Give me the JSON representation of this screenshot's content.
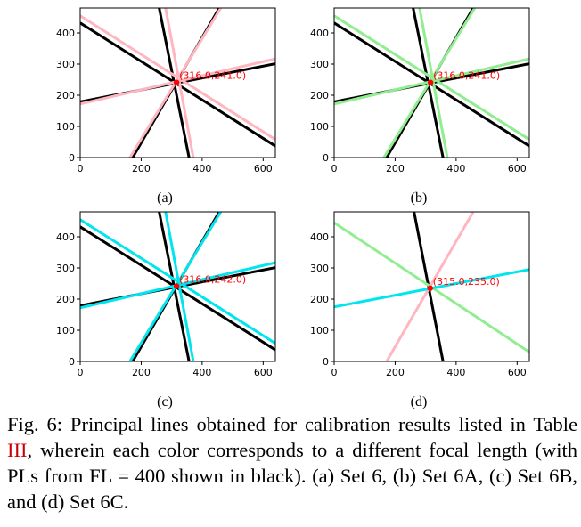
{
  "chart_data": [
    {
      "type": "line",
      "xlim": [
        0,
        640
      ],
      "ylim": [
        0,
        480
      ],
      "xticks": [
        "0",
        "200",
        "400",
        "600"
      ],
      "yticks": [
        "0",
        "100",
        "200",
        "300",
        "400"
      ],
      "point": {
        "x": 316.0,
        "y": 241.0,
        "label": "(316.0,241.0)"
      },
      "subcaption": "(a)",
      "colors": {
        "fl400": "#000000",
        "other": "#ffb6c1",
        "point": "#ff0000"
      },
      "series": [
        {
          "color": "#000000",
          "lines": [
            {
              "x": [
                0,
                640
              ],
              "y": [
                432,
                37
              ]
            },
            {
              "x": [
                0,
                640
              ],
              "y": [
                179,
                301
              ]
            },
            {
              "x": [
                172,
                456
              ],
              "y": [
                0,
                480
              ]
            },
            {
              "x": [
                259,
                357
              ],
              "y": [
                480,
                0
              ]
            }
          ]
        },
        {
          "color": "#ffb6c1",
          "lines": [
            {
              "x": [
                0,
                640
              ],
              "y": [
                455,
                58
              ]
            },
            {
              "x": [
                0,
                640
              ],
              "y": [
                172,
                317
              ]
            },
            {
              "x": [
                163,
                461
              ],
              "y": [
                0,
                480
              ]
            },
            {
              "x": [
                280,
                371
              ],
              "y": [
                480,
                0
              ]
            }
          ]
        }
      ]
    },
    {
      "type": "line",
      "xlim": [
        0,
        640
      ],
      "ylim": [
        0,
        480
      ],
      "xticks": [
        "0",
        "200",
        "400",
        "600"
      ],
      "yticks": [
        "0",
        "100",
        "200",
        "300",
        "400"
      ],
      "point": {
        "x": 316.0,
        "y": 241.0,
        "label": "(316.0,241.0)"
      },
      "subcaption": "(b)",
      "colors": {
        "fl400": "#000000",
        "other": "#90ee90",
        "point": "#ff0000"
      },
      "series": [
        {
          "color": "#000000",
          "lines": [
            {
              "x": [
                0,
                640
              ],
              "y": [
                432,
                37
              ]
            },
            {
              "x": [
                0,
                640
              ],
              "y": [
                179,
                301
              ]
            },
            {
              "x": [
                172,
                456
              ],
              "y": [
                0,
                480
              ]
            },
            {
              "x": [
                259,
                357
              ],
              "y": [
                480,
                0
              ]
            }
          ]
        },
        {
          "color": "#90ee90",
          "lines": [
            {
              "x": [
                0,
                640
              ],
              "y": [
                455,
                58
              ]
            },
            {
              "x": [
                0,
                640
              ],
              "y": [
                172,
                317
              ]
            },
            {
              "x": [
                163,
                461
              ],
              "y": [
                0,
                480
              ]
            },
            {
              "x": [
                280,
                371
              ],
              "y": [
                480,
                0
              ]
            }
          ]
        }
      ]
    },
    {
      "type": "line",
      "xlim": [
        0,
        640
      ],
      "ylim": [
        0,
        480
      ],
      "xticks": [
        "0",
        "200",
        "400",
        "600"
      ],
      "yticks": [
        "0",
        "100",
        "200",
        "300",
        "400"
      ],
      "point": {
        "x": 316.0,
        "y": 242.0,
        "label": "(316.0,242.0)"
      },
      "subcaption": "(c)",
      "colors": {
        "fl400": "#000000",
        "other": "#00e5ee",
        "point": "#ff0000"
      },
      "series": [
        {
          "color": "#000000",
          "lines": [
            {
              "x": [
                0,
                640
              ],
              "y": [
                432,
                37
              ]
            },
            {
              "x": [
                0,
                640
              ],
              "y": [
                179,
                301
              ]
            },
            {
              "x": [
                172,
                456
              ],
              "y": [
                0,
                480
              ]
            },
            {
              "x": [
                259,
                357
              ],
              "y": [
                480,
                0
              ]
            }
          ]
        },
        {
          "color": "#00e5ee",
          "lines": [
            {
              "x": [
                0,
                640
              ],
              "y": [
                455,
                58
              ]
            },
            {
              "x": [
                0,
                640
              ],
              "y": [
                172,
                317
              ]
            },
            {
              "x": [
                163,
                461
              ],
              "y": [
                0,
                480
              ]
            },
            {
              "x": [
                280,
                371
              ],
              "y": [
                480,
                0
              ]
            }
          ]
        }
      ]
    },
    {
      "type": "line",
      "xlim": [
        0,
        640
      ],
      "ylim": [
        0,
        480
      ],
      "xticks": [
        "0",
        "200",
        "400",
        "600"
      ],
      "yticks": [
        "0",
        "100",
        "200",
        "300",
        "400"
      ],
      "point": {
        "x": 315.0,
        "y": 235.0,
        "label": "(315.0,235.0)"
      },
      "subcaption": "(d)",
      "colors": {
        "fl400": "#000000",
        "point": "#ff0000"
      },
      "series": [
        {
          "color": "#000000",
          "lines": [
            {
              "x": [
                262,
                357
              ],
              "y": [
                480,
                0
              ]
            }
          ]
        },
        {
          "color": "#ffb6c1",
          "lines": [
            {
              "x": [
                172,
                456
              ],
              "y": [
                0,
                480
              ]
            }
          ]
        },
        {
          "color": "#90ee90",
          "lines": [
            {
              "x": [
                0,
                640
              ],
              "y": [
                445,
                30
              ]
            }
          ]
        },
        {
          "color": "#00e5ee",
          "lines": [
            {
              "x": [
                0,
                640
              ],
              "y": [
                175,
                295
              ]
            }
          ]
        }
      ]
    }
  ],
  "caption": {
    "part1": "Fig. 6: Principal lines obtained for calibration results listed in Table ",
    "table_ref": "III",
    "part2": ", wherein each color corresponds to a different focal length (with PLs from FL = 400 shown in black). (a) Set 6, (b) Set 6A, (c) Set 6B, and (d) Set 6C."
  }
}
